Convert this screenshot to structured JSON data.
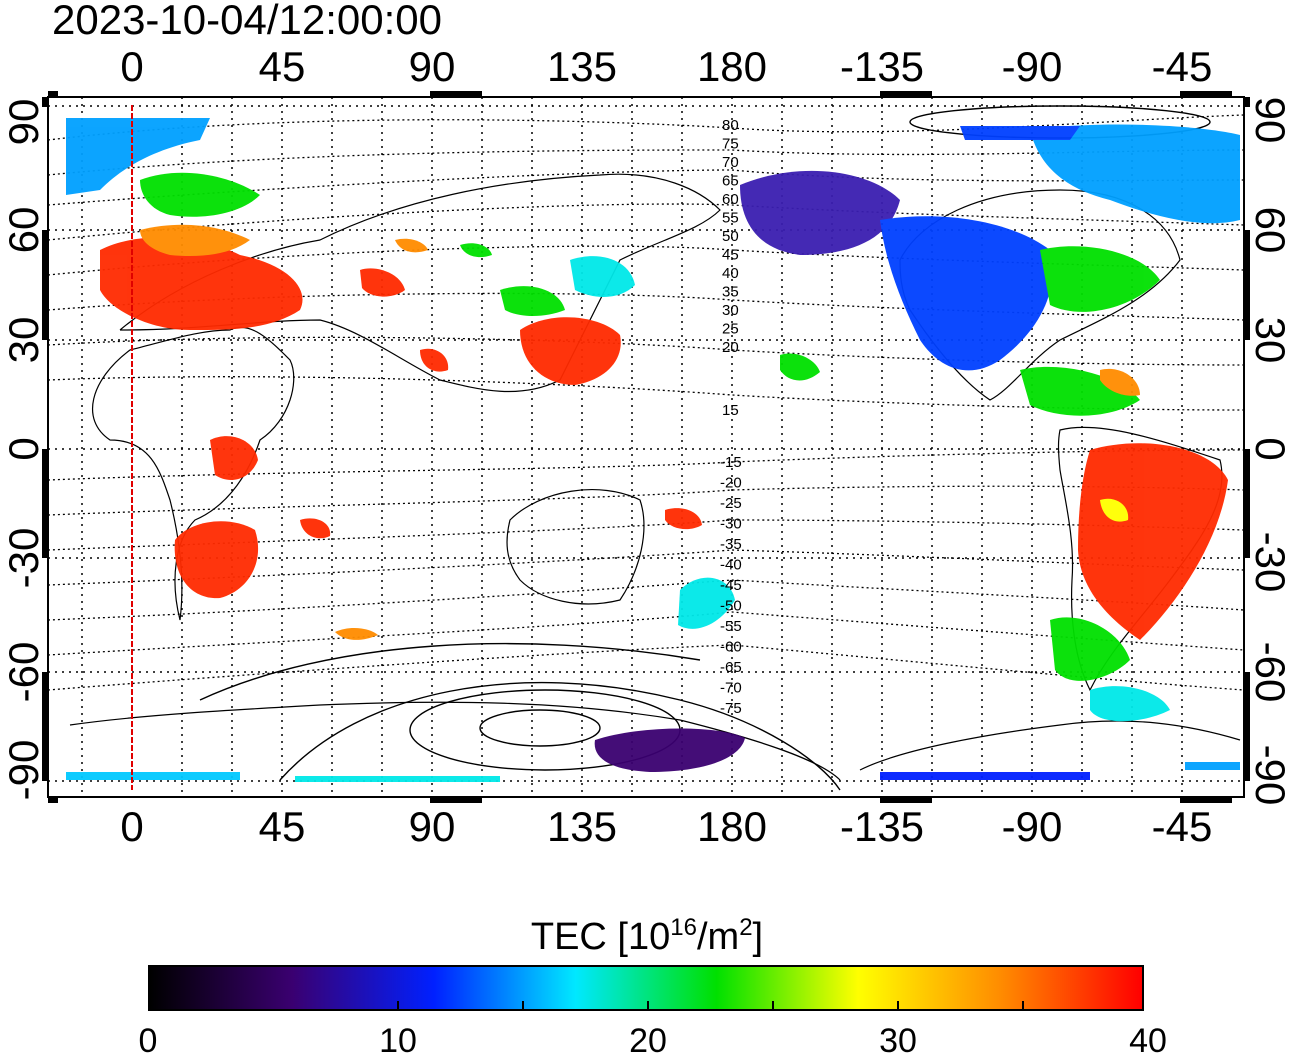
{
  "title": "2023-10-04/12:00:00",
  "map": {
    "lon_ticks_top": [
      "0",
      "45",
      "90",
      "135",
      "180",
      "-135",
      "-90",
      "-45"
    ],
    "lon_ticks_bottom": [
      "0",
      "45",
      "90",
      "135",
      "180",
      "-135",
      "-90",
      "-45"
    ],
    "lat_ticks_left": [
      "90",
      "60",
      "30",
      "0",
      "-30",
      "-60",
      "-90"
    ],
    "lat_ticks_right": [
      "90",
      "60",
      "30",
      "0",
      "-30",
      "-60",
      "-90"
    ],
    "contour_labels_north": [
      "80",
      "75",
      "70",
      "65",
      "60",
      "55",
      "50",
      "45",
      "40",
      "35",
      "30",
      "25",
      "20",
      "15"
    ],
    "contour_labels_south": [
      "-15",
      "-20",
      "-25",
      "-30",
      "-35",
      "-40",
      "-45",
      "-50",
      "-55",
      "-60",
      "-65",
      "-70",
      "-75"
    ],
    "reference_line_color": "#e00000",
    "colors": {
      "red": "#ff2a00",
      "orange": "#ff8c00",
      "yellow": "#ffff00",
      "green": "#00e000",
      "cyan": "#00e8e8",
      "blue": "#0055ff",
      "purple": "#4b0082",
      "dark": "#1a0010"
    }
  },
  "colorbar": {
    "title_main": "TEC  [10",
    "title_exp": "16",
    "title_unit": "/m",
    "title_exp2": "2",
    "title_end": "]",
    "ticks": [
      "0",
      "10",
      "20",
      "30",
      "40"
    ],
    "stops": [
      "#000000",
      "#3a0070",
      "#0020ff",
      "#00e8ff",
      "#00e000",
      "#ffff00",
      "#ff8c00",
      "#ff0000"
    ]
  }
}
